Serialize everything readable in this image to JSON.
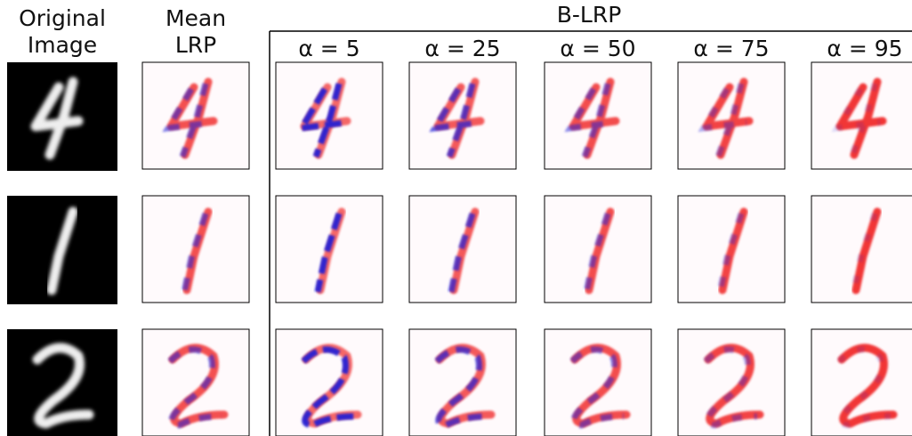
{
  "headers": {
    "original": [
      "Original",
      "Image"
    ],
    "mean_lrp": [
      "Mean",
      "LRP"
    ],
    "b_lrp": "B-LRP",
    "alphas": [
      "α = 5",
      "α = 25",
      "α = 50",
      "α = 75",
      "α = 95"
    ]
  }
}
